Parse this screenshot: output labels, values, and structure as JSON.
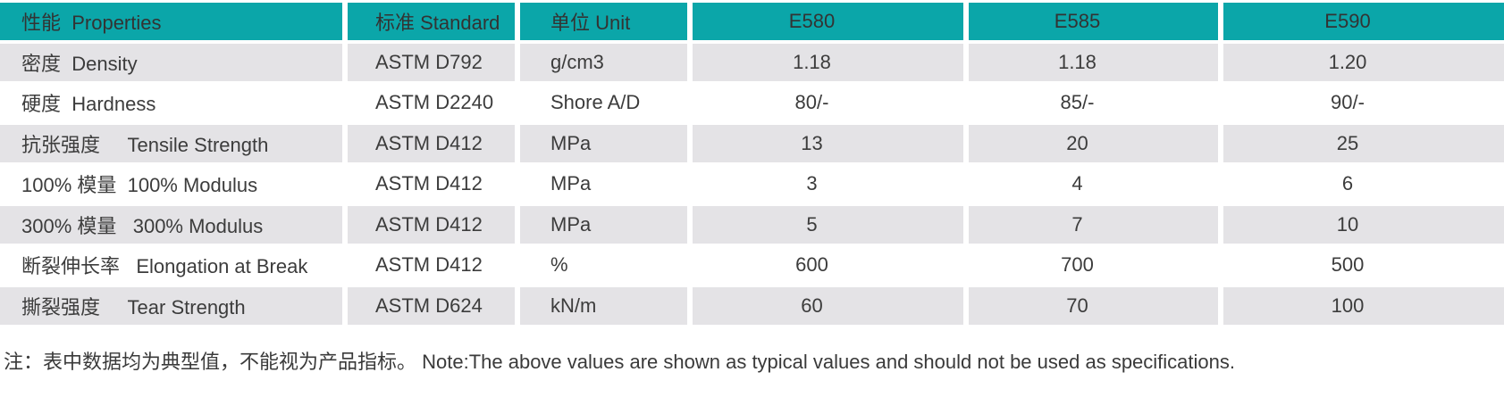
{
  "colors": {
    "header_bg": "#0ba6a9",
    "row_stripe_bg": "#e4e3e6",
    "page_bg": "#ffffff",
    "text": "#3c3c3c"
  },
  "table": {
    "headers": {
      "properties": "性能  Properties",
      "standard": "标准 Standard",
      "unit": "单位 Unit",
      "e580": "E580",
      "e585": "E585",
      "e590": "E590"
    },
    "rows": [
      {
        "property": "密度  Density",
        "standard": "ASTM D792",
        "unit": "g/cm3",
        "e580": "1.18",
        "e585": "1.18",
        "e590": "1.20"
      },
      {
        "property": "硬度  Hardness",
        "standard": "ASTM D2240",
        "unit": "Shore A/D",
        "e580": "80/-",
        "e585": "85/-",
        "e590": "90/-"
      },
      {
        "property": "抗张强度     Tensile Strength",
        "standard": "ASTM D412",
        "unit": "MPa",
        "e580": "13",
        "e585": "20",
        "e590": "25"
      },
      {
        "property": "100% 模量  100% Modulus",
        "standard": "ASTM D412",
        "unit": "MPa",
        "e580": "3",
        "e585": "4",
        "e590": "6"
      },
      {
        "property": "300% 模量   300% Modulus",
        "standard": "ASTM D412",
        "unit": "MPa",
        "e580": "5",
        "e585": "7",
        "e590": "10"
      },
      {
        "property": "断裂伸长率   Elongation at Break",
        "standard": "ASTM D412",
        "unit": "%",
        "e580": "600",
        "e585": "700",
        "e590": "500"
      },
      {
        "property": "撕裂强度     Tear Strength",
        "standard": "ASTM D624",
        "unit": "kN/m",
        "e580": "60",
        "e585": "70",
        "e590": "100"
      }
    ]
  },
  "note": "注：表中数据均为典型值，不能视为产品指标。 Note:The above values are shown as typical values and should not be used as specifications."
}
